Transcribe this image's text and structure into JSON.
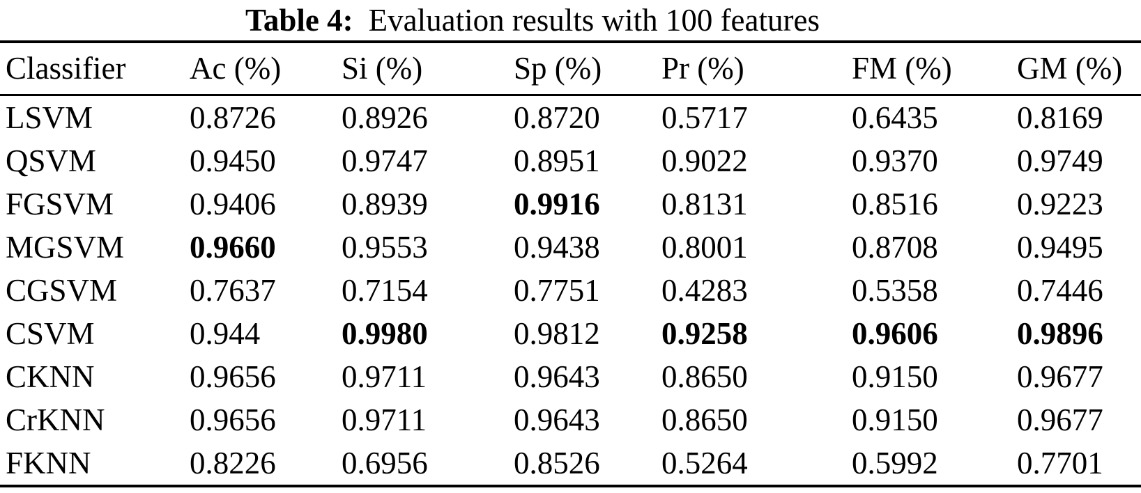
{
  "page": {
    "background_color": "#ffffff",
    "text_color": "#000000"
  },
  "caption": {
    "label": "Table 4:",
    "text": "Evaluation results with 100 features"
  },
  "table": {
    "columns": [
      "Classifier",
      "Ac (%)",
      "Si (%)",
      "Sp (%)",
      "Pr (%)",
      "FM (%)",
      "GM (%)"
    ],
    "rows": [
      {
        "classifier": "LSVM",
        "values": [
          "0.8726",
          "0.8926",
          "0.8720",
          "0.5717",
          "0.6435",
          "0.8169"
        ],
        "bold": []
      },
      {
        "classifier": "QSVM",
        "values": [
          "0.9450",
          "0.9747",
          "0.8951",
          "0.9022",
          "0.9370",
          "0.9749"
        ],
        "bold": []
      },
      {
        "classifier": "FGSVM",
        "values": [
          "0.9406",
          "0.8939",
          "0.9916",
          "0.8131",
          "0.8516",
          "0.9223"
        ],
        "bold": [
          2
        ]
      },
      {
        "classifier": "MGSVM",
        "values": [
          "0.9660",
          "0.9553",
          "0.9438",
          "0.8001",
          "0.8708",
          "0.9495"
        ],
        "bold": [
          0
        ]
      },
      {
        "classifier": "CGSVM",
        "values": [
          "0.7637",
          "0.7154",
          "0.7751",
          "0.4283",
          "0.5358",
          "0.7446"
        ],
        "bold": []
      },
      {
        "classifier": "CSVM",
        "values": [
          "0.944",
          "0.9980",
          "0.9812",
          "0.9258",
          "0.9606",
          "0.9896"
        ],
        "bold": [
          1,
          3,
          4,
          5
        ]
      },
      {
        "classifier": "CKNN",
        "values": [
          "0.9656",
          "0.9711",
          "0.9643",
          "0.8650",
          "0.9150",
          "0.9677"
        ],
        "bold": []
      },
      {
        "classifier": "CrKNN",
        "values": [
          "0.9656",
          "0.9711",
          "0.9643",
          "0.8650",
          "0.9150",
          "0.9677"
        ],
        "bold": []
      },
      {
        "classifier": "FKNN",
        "values": [
          "0.8226",
          "0.6956",
          "0.8526",
          "0.5264",
          "0.5992",
          "0.7701"
        ],
        "bold": []
      }
    ]
  },
  "chart_data": {
    "type": "table",
    "title": "Table 4: Evaluation results with 100 features",
    "categories": [
      "LSVM",
      "QSVM",
      "FGSVM",
      "MGSVM",
      "CGSVM",
      "CSVM",
      "CKNN",
      "CrKNN",
      "FKNN"
    ],
    "series": [
      {
        "name": "Ac (%)",
        "values": [
          0.8726,
          0.945,
          0.9406,
          0.966,
          0.7637,
          0.944,
          0.9656,
          0.9656,
          0.8226
        ]
      },
      {
        "name": "Si (%)",
        "values": [
          0.8926,
          0.9747,
          0.8939,
          0.9553,
          0.7154,
          0.998,
          0.9711,
          0.9711,
          0.6956
        ]
      },
      {
        "name": "Sp (%)",
        "values": [
          0.872,
          0.8951,
          0.9916,
          0.9438,
          0.7751,
          0.9812,
          0.9643,
          0.9643,
          0.8526
        ]
      },
      {
        "name": "Pr (%)",
        "values": [
          0.5717,
          0.9022,
          0.8131,
          0.8001,
          0.4283,
          0.9258,
          0.865,
          0.865,
          0.5264
        ]
      },
      {
        "name": "FM (%)",
        "values": [
          0.6435,
          0.937,
          0.8516,
          0.8708,
          0.5358,
          0.9606,
          0.915,
          0.915,
          0.5992
        ]
      },
      {
        "name": "GM (%)",
        "values": [
          0.8169,
          0.9749,
          0.9223,
          0.9495,
          0.7446,
          0.9896,
          0.9677,
          0.9677,
          0.7701
        ]
      }
    ]
  }
}
